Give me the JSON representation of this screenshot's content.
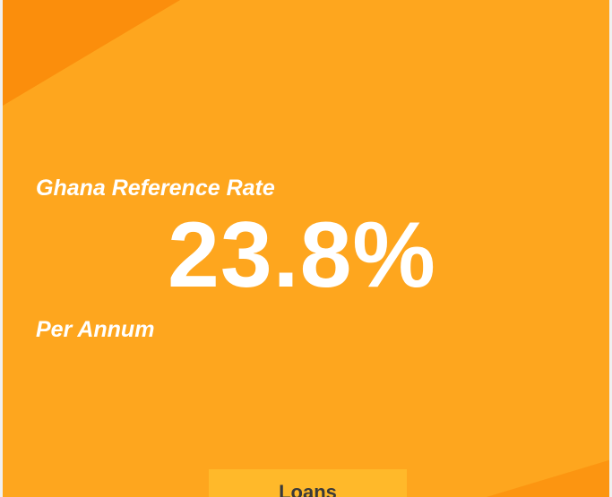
{
  "rate_card": {
    "label": "Ghana Reference Rate",
    "value": "23.8%",
    "unit": "Per Annum",
    "background_color": "#fea61e",
    "accent_color": "#fb8e0c"
  },
  "actions": {
    "loans_label": "Loans"
  }
}
